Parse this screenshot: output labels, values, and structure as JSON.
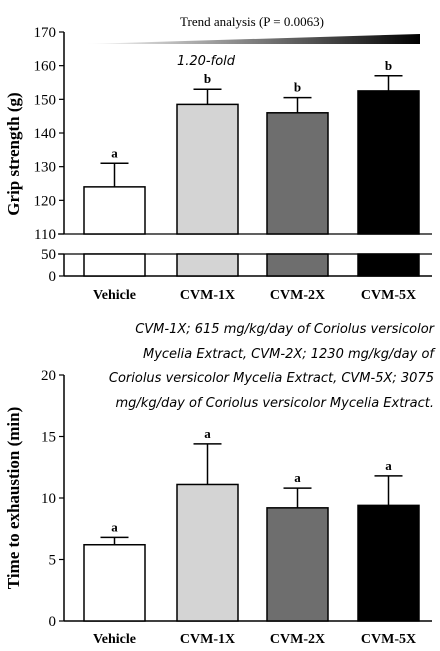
{
  "chart_data": [
    {
      "type": "bar",
      "categories": [
        "Vehicle",
        "CVM-1X",
        "CVM-2X",
        "CVM-5X"
      ],
      "ylabel": "Grip strength (g)",
      "values": [
        124,
        148.5,
        146,
        152.5
      ],
      "errors": [
        7,
        4.5,
        4.5,
        4.5
      ],
      "letters": [
        "a",
        "b",
        "b",
        "b"
      ],
      "colors": [
        "#ffffff",
        "#d4d4d4",
        "#6e6e6e",
        "#000000"
      ],
      "axis_break": {
        "lower_ticks": [
          0,
          50
        ],
        "upper_ticks": [
          110,
          120,
          130,
          140,
          150,
          160,
          170
        ]
      },
      "ylim": [
        0,
        170
      ],
      "trend_label": "Trend analysis (P = 0.0063)",
      "fold_annotation": "1.20-fold"
    },
    {
      "type": "bar",
      "categories": [
        "Vehicle",
        "CVM-1X",
        "CVM-2X",
        "CVM-5X"
      ],
      "ylabel": "Time to exhaustion (min)",
      "values": [
        6.2,
        11.1,
        9.2,
        9.4
      ],
      "errors": [
        0.6,
        3.3,
        1.6,
        2.4
      ],
      "letters": [
        "a",
        "a",
        "a",
        "a"
      ],
      "colors": [
        "#ffffff",
        "#d4d4d4",
        "#6e6e6e",
        "#000000"
      ],
      "ylim": [
        0,
        20
      ],
      "yticks": [
        0,
        5,
        10,
        15,
        20
      ]
    }
  ],
  "annotation_note": "CVM-1X; 615 mg/kg/day of Coriolus versicolor Mycelia Extract, CVM-2X; 1230 mg/kg/day of Coriolus versicolor Mycelia Extract, CVM-5X; 3075 mg/kg/day of Coriolus versicolor Mycelia Extract."
}
